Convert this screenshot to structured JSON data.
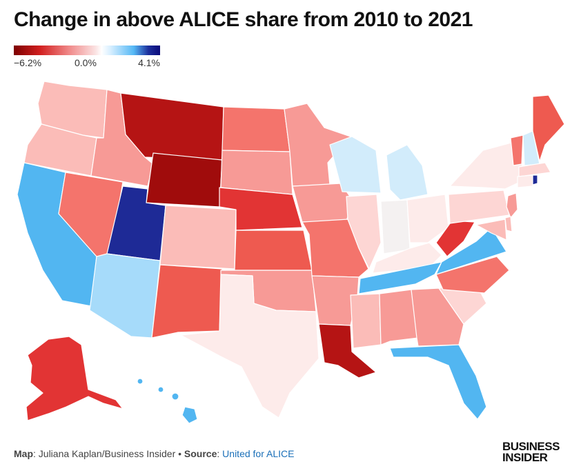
{
  "title": "Change in above ALICE share from 2010 to 2021",
  "legend": {
    "min_label": "−6.2%",
    "mid_label": "0.0%",
    "max_label": "4.1%"
  },
  "colors": {
    "darkest_red": "#a00c0c",
    "dark_red": "#b51414",
    "red": "#e23434",
    "red_mid": "#ee5a50",
    "red_light": "#f4746c",
    "salmon": "#f79a96",
    "pink": "#fbbcb8",
    "pale_pink": "#fdd6d4",
    "faint_pink": "#fdebea",
    "near_white": "#f4f1f1",
    "pale_blue": "#d2ecfb",
    "light_blue": "#a6dbfa",
    "blue": "#52b6f1",
    "dark_blue": "#1e2a96"
  },
  "footer": {
    "map_label": "Map",
    "map_credit": ": Juliana Kaplan/Business Insider • ",
    "source_label": "Source",
    "source_sep": ": ",
    "source_name": "United for ALICE"
  },
  "brand": {
    "line1": "BUSINESS",
    "line2": "INSIDER"
  }
}
